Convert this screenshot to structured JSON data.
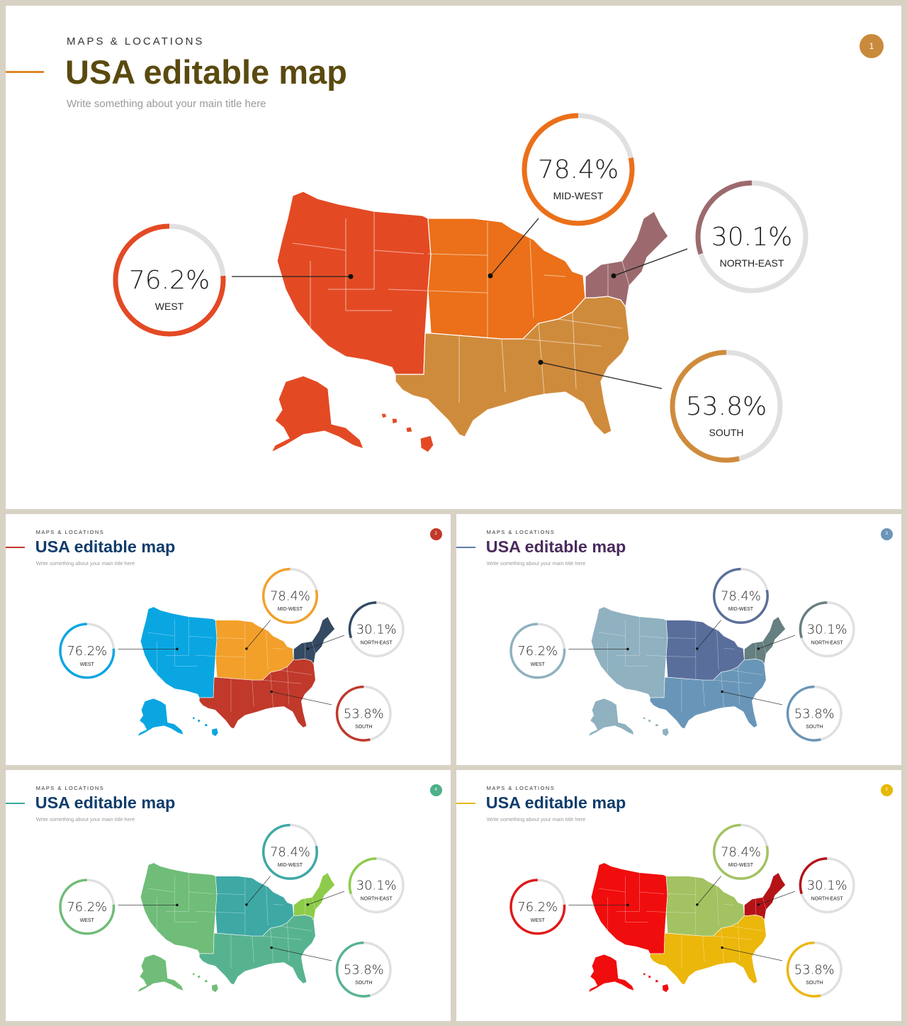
{
  "slides": [
    {
      "number": "1",
      "caption": "MAPS & LOCATIONS",
      "title": "USA editable map",
      "description": "Write something about your main title here",
      "colors": {
        "title": "#5a4a0f",
        "accent": "#e0872a",
        "badge": "#c98a3c",
        "west": "#e34a24",
        "midwest": "#eb7019",
        "northeast": "#9c6a6e",
        "south": "#cf8b3c",
        "ring_west": "#e34a24",
        "ring_midwest": "#eb7019",
        "ring_northeast": "#9c6a6e",
        "ring_south": "#cf8b3c"
      }
    },
    {
      "number": "2",
      "caption": "MAPS & LOCATIONS",
      "title": "USA editable map",
      "description": "Write something about your main title here",
      "colors": {
        "title": "#0f3d6b",
        "accent": "#c0392b",
        "badge": "#c0392b",
        "west": "#0aa6e2",
        "midwest": "#f2a02a",
        "northeast": "#344a63",
        "south": "#c0392b",
        "ring_west": "#0aa6e2",
        "ring_midwest": "#f2a02a",
        "ring_northeast": "#344a63",
        "ring_south": "#c0392b"
      }
    },
    {
      "number": "3",
      "caption": "MAPS & LOCATIONS",
      "title": "USA editable map",
      "description": "Write something about your main title here",
      "colors": {
        "title": "#4a2b5c",
        "accent": "#5d7ea8",
        "badge": "#6a95b8",
        "west": "#8fb1c0",
        "midwest": "#5a6e9c",
        "northeast": "#667f80",
        "south": "#6996b8",
        "ring_west": "#8fb1c0",
        "ring_midwest": "#5a6e9c",
        "ring_northeast": "#667f80",
        "ring_south": "#6996b8"
      }
    },
    {
      "number": "4",
      "caption": "MAPS & LOCATIONS",
      "title": "USA editable map",
      "description": "Write something about your main title here",
      "colors": {
        "title": "#0f3d6b",
        "accent": "#3aa7a0",
        "badge": "#4fb08a",
        "west": "#6fbd78",
        "midwest": "#3ea8a5",
        "northeast": "#8dcc4a",
        "south": "#57b38f",
        "ring_west": "#6fbd78",
        "ring_midwest": "#3ea8a5",
        "ring_northeast": "#8dcc4a",
        "ring_south": "#57b38f"
      }
    },
    {
      "number": "5",
      "caption": "MAPS & LOCATIONS",
      "title": "USA editable map",
      "description": "Write something about your main title here",
      "colors": {
        "title": "#0f3d6b",
        "accent": "#e6b800",
        "badge": "#e6b800",
        "west": "#f00d0d",
        "midwest": "#a3c262",
        "northeast": "#b51218",
        "south": "#ebb70b",
        "ring_west": "#e01818",
        "ring_midwest": "#a3c262",
        "ring_northeast": "#b51218",
        "ring_south": "#ebb70b"
      }
    }
  ],
  "regions": [
    {
      "key": "west",
      "percent": "76.2%",
      "label": "WEST",
      "value": 76.2
    },
    {
      "key": "midwest",
      "percent": "78.4%",
      "label": "MID-WEST",
      "value": 78.4
    },
    {
      "key": "northeast",
      "percent": "30.1%",
      "label": "NORTH-EAST",
      "value": 30.1
    },
    {
      "key": "south",
      "percent": "53.8%",
      "label": "SOUTH",
      "value": 53.8
    }
  ]
}
